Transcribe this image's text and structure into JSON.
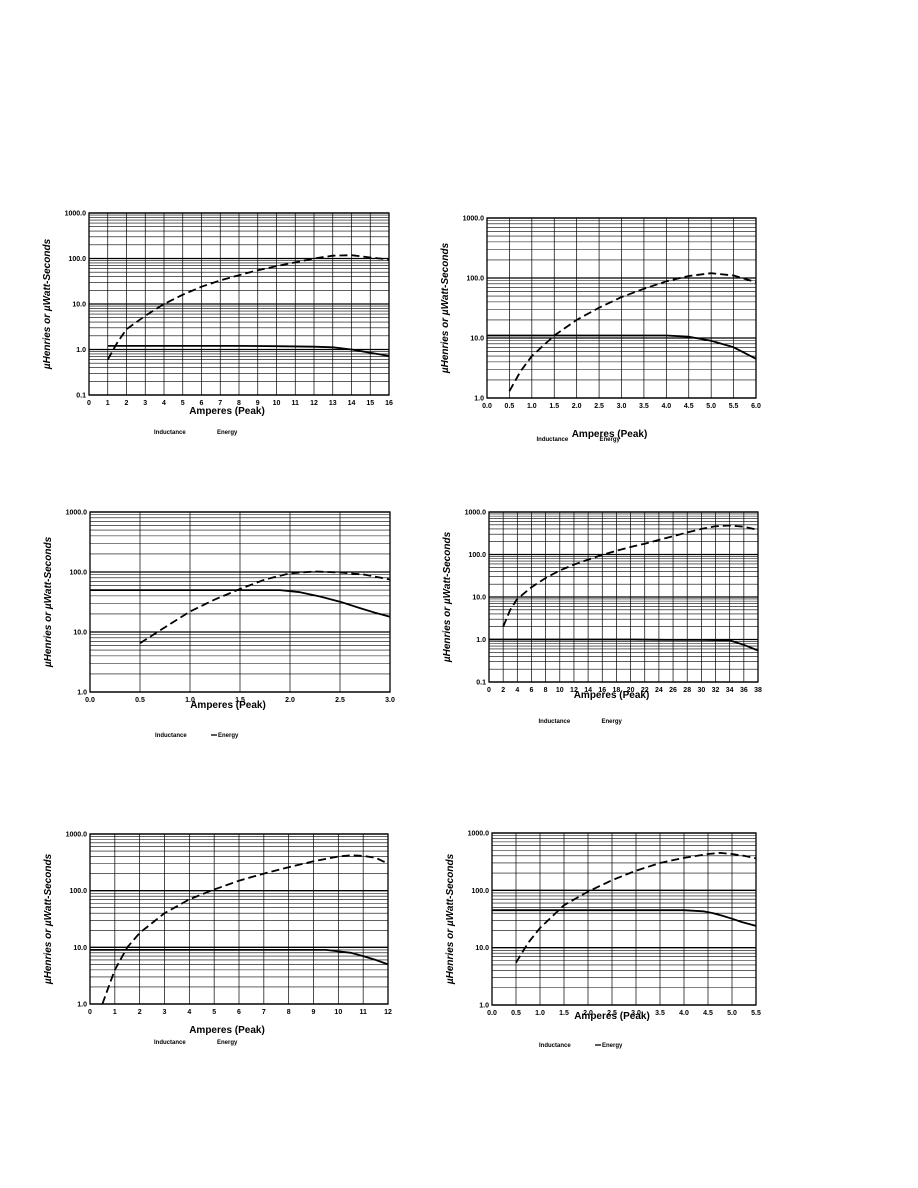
{
  "charts": [
    {
      "id": "c1",
      "type": "line",
      "log_y": true,
      "xlabel": "Amperes (Peak)",
      "ylabel": "µHenries or  µWatt-Seconds",
      "xlim": [
        0,
        16
      ],
      "ylim": [
        0.1,
        1000
      ],
      "xticks": [
        0,
        1,
        2,
        3,
        4,
        5,
        6,
        7,
        8,
        9,
        10,
        11,
        12,
        13,
        14,
        15,
        16
      ],
      "xtick_labels": [
        "0",
        "1",
        "2",
        "3",
        "4",
        "5",
        "6",
        "7",
        "8",
        "9",
        "10",
        "11",
        "12",
        "13",
        "14",
        "15",
        "16"
      ],
      "ytick_labels": [
        "1000.0",
        "100.0",
        "10.0",
        "1.0",
        "0.1"
      ],
      "legend": [
        "Inductance",
        "Energy"
      ],
      "legend_dash": false,
      "series": [
        {
          "name": "Inductance",
          "style": "solid",
          "x": [
            1,
            2,
            4,
            6,
            8,
            10,
            12,
            13,
            14,
            15,
            16
          ],
          "y": [
            1.2,
            1.2,
            1.2,
            1.2,
            1.2,
            1.18,
            1.15,
            1.12,
            1.0,
            0.85,
            0.72
          ]
        },
        {
          "name": "Energy",
          "style": "dashed",
          "x": [
            1,
            1.5,
            2,
            3,
            4,
            5,
            6,
            7,
            8,
            9,
            10,
            11,
            12,
            13,
            14,
            15,
            16
          ],
          "y": [
            0.6,
            1.4,
            2.8,
            5.5,
            10,
            16,
            24,
            33,
            43,
            55,
            68,
            82,
            100,
            115,
            118,
            105,
            95
          ]
        }
      ]
    },
    {
      "id": "c2",
      "type": "line",
      "log_y": true,
      "xlabel": "Amperes (Peak)",
      "ylabel": "µHenries or  µWatt-Seconds",
      "xlim": [
        0,
        6
      ],
      "ylim": [
        1,
        1000
      ],
      "xticks": [
        0,
        0.5,
        1,
        1.5,
        2,
        2.5,
        3,
        3.5,
        4,
        4.5,
        5,
        5.5,
        6
      ],
      "xtick_labels": [
        "0.0",
        "0.5",
        "1.0",
        "1.5",
        "2.0",
        "2.5",
        "3.0",
        "3.5",
        "4.0",
        "4.5",
        "5.0",
        "5.5",
        "6.0"
      ],
      "ytick_labels": [
        "1000.0",
        "100.0",
        "10.0",
        "1.0"
      ],
      "legend": [
        "Inductance",
        "Energy"
      ],
      "legend_dash": false,
      "series": [
        {
          "name": "Inductance",
          "style": "solid",
          "x": [
            0,
            1,
            2,
            3,
            4,
            4.5,
            5,
            5.5,
            6
          ],
          "y": [
            11,
            11,
            11,
            11,
            11,
            10.5,
            9,
            7,
            4.5
          ]
        },
        {
          "name": "Energy",
          "style": "dashed",
          "x": [
            0.5,
            0.75,
            1,
            1.5,
            2,
            2.5,
            3,
            3.5,
            4,
            4.5,
            5,
            5.5,
            6
          ],
          "y": [
            1.3,
            2.8,
            5,
            11,
            20,
            32,
            48,
            66,
            88,
            108,
            120,
            110,
            85
          ]
        }
      ]
    },
    {
      "id": "c3",
      "type": "line",
      "log_y": true,
      "xlabel": "Amperes (Peak)",
      "ylabel": "µHenries or  µWatt-Seconds",
      "xlim": [
        0,
        3
      ],
      "ylim": [
        1,
        1000
      ],
      "xticks": [
        0,
        0.5,
        1,
        1.5,
        2,
        2.5,
        3
      ],
      "xtick_labels": [
        "0.0",
        "0.5",
        "1.0",
        "1.5",
        "2.0",
        "2.5",
        "3.0"
      ],
      "ytick_labels": [
        "1000.0",
        "100.0",
        "10.0",
        "1.0"
      ],
      "legend": [
        "Inductance",
        "Energy"
      ],
      "legend_dash": true,
      "series": [
        {
          "name": "Inductance",
          "style": "solid",
          "x": [
            0,
            0.5,
            1,
            1.5,
            1.9,
            2.1,
            2.3,
            2.5,
            2.7,
            2.85,
            3
          ],
          "y": [
            50,
            50,
            50,
            50,
            50,
            46,
            39,
            32,
            25,
            21,
            18
          ]
        },
        {
          "name": "Energy",
          "style": "dashed",
          "x": [
            0.5,
            0.75,
            1,
            1.25,
            1.5,
            1.75,
            2,
            2.25,
            2.5,
            2.75,
            3
          ],
          "y": [
            6.5,
            12,
            22,
            35,
            52,
            75,
            95,
            102,
            98,
            90,
            75
          ]
        }
      ]
    },
    {
      "id": "c4",
      "type": "line",
      "log_y": true,
      "xlabel": "Amperes (Peak)",
      "ylabel": "µHenries or  µWatt-Seconds",
      "xlim": [
        0,
        38
      ],
      "ylim": [
        0.1,
        1000
      ],
      "xticks": [
        0,
        2,
        4,
        6,
        8,
        10,
        12,
        14,
        16,
        18,
        20,
        22,
        24,
        26,
        28,
        30,
        32,
        34,
        36,
        38
      ],
      "xtick_labels": [
        "0",
        "2",
        "4",
        "6",
        "8",
        "10",
        "12",
        "14",
        "16",
        "18",
        "20",
        "22",
        "24",
        "26",
        "28",
        "30",
        "32",
        "34",
        "36",
        "38"
      ],
      "ytick_labels": [
        "1000.0",
        "100.0",
        "10.0",
        "1.0",
        "0.1"
      ],
      "legend": [
        "Inductance",
        "Energy"
      ],
      "legend_dash": false,
      "series": [
        {
          "name": "Inductance",
          "style": "solid",
          "x": [
            0,
            5,
            10,
            15,
            20,
            25,
            30,
            34,
            36,
            38
          ],
          "y": [
            1,
            1,
            1,
            1,
            1,
            0.98,
            0.98,
            0.95,
            0.75,
            0.55
          ]
        },
        {
          "name": "Energy",
          "style": "dashed",
          "x": [
            2,
            3,
            4,
            6,
            8,
            10,
            12,
            14,
            16,
            18,
            20,
            22,
            24,
            26,
            28,
            30,
            32,
            34,
            36,
            38
          ],
          "y": [
            2,
            5,
            9,
            17,
            28,
            42,
            58,
            76,
            98,
            122,
            150,
            180,
            220,
            270,
            330,
            400,
            460,
            480,
            450,
            380
          ]
        }
      ]
    },
    {
      "id": "c5",
      "type": "line",
      "log_y": true,
      "xlabel": "Amperes (Peak)",
      "ylabel": "µHenries or  µWatt-Seconds",
      "xlim": [
        0,
        12
      ],
      "ylim": [
        1,
        1000
      ],
      "xticks": [
        0,
        1,
        2,
        3,
        4,
        5,
        6,
        7,
        8,
        9,
        10,
        11,
        12
      ],
      "xtick_labels": [
        "0",
        "1",
        "2",
        "3",
        "4",
        "5",
        "6",
        "7",
        "8",
        "9",
        "10",
        "11",
        "12"
      ],
      "ytick_labels": [
        "1000.0",
        "100.0",
        "10.0",
        "1.0"
      ],
      "legend": [
        "Inductance",
        "Energy"
      ],
      "legend_dash": false,
      "series": [
        {
          "name": "Inductance",
          "style": "solid",
          "x": [
            0,
            2,
            4,
            6,
            8,
            9.5,
            10.5,
            11,
            11.5,
            12
          ],
          "y": [
            9,
            9,
            9,
            9,
            9,
            9,
            8,
            7,
            6,
            5
          ]
        },
        {
          "name": "Energy",
          "style": "dashed",
          "x": [
            0.5,
            1,
            1.5,
            2,
            3,
            4,
            5,
            6,
            7,
            8,
            9,
            10,
            10.5,
            11,
            11.5,
            12
          ],
          "y": [
            1,
            4,
            10,
            18,
            40,
            70,
            105,
            150,
            200,
            260,
            330,
            400,
            420,
            410,
            380,
            300
          ]
        }
      ]
    },
    {
      "id": "c6",
      "type": "line",
      "log_y": true,
      "xlabel": "Amperes (Peak)",
      "ylabel": "µHenries or  µWatt-Seconds",
      "xlim": [
        0,
        5.5
      ],
      "ylim": [
        1,
        1000
      ],
      "xticks": [
        0,
        0.5,
        1,
        1.5,
        2,
        2.5,
        3,
        3.5,
        4,
        4.5,
        5,
        5.5
      ],
      "xtick_labels": [
        "0.0",
        "0.5",
        "1.0",
        "1.5",
        "2.0",
        "2.5",
        "3.0",
        "3.5",
        "4.0",
        "4.5",
        "5.0",
        "5.5"
      ],
      "ytick_labels": [
        "1000.0",
        "100.0",
        "10.0",
        "1.0"
      ],
      "legend": [
        "Inductance",
        "Energy"
      ],
      "legend_dash": true,
      "series": [
        {
          "name": "Inductance",
          "style": "solid",
          "x": [
            0,
            1,
            2,
            3,
            4,
            4.4,
            4.6,
            4.8,
            5,
            5.2,
            5.5
          ],
          "y": [
            45,
            45,
            45,
            45,
            45,
            43,
            40,
            36,
            32,
            28,
            24
          ]
        },
        {
          "name": "Energy",
          "style": "dashed",
          "x": [
            0.5,
            0.75,
            1,
            1.5,
            2,
            2.5,
            3,
            3.5,
            4,
            4.5,
            4.75,
            5,
            5.25,
            5.5
          ],
          "y": [
            5.5,
            12,
            22,
            55,
            95,
            150,
            220,
            300,
            370,
            430,
            450,
            430,
            400,
            360
          ]
        }
      ]
    }
  ]
}
